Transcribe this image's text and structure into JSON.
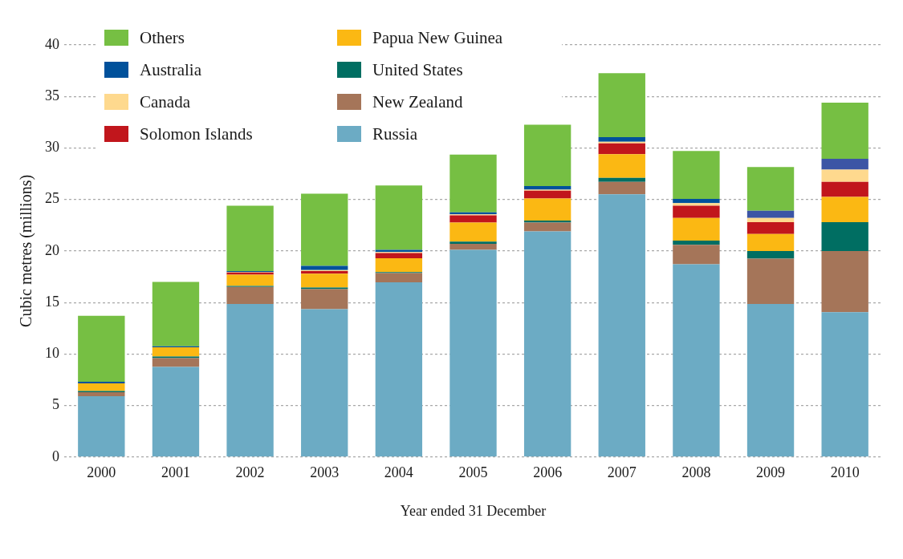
{
  "chart_data": {
    "type": "bar",
    "stacked": true,
    "xlabel": "Year ended 31 December",
    "ylabel": "Cubic metres (millions)",
    "categories": [
      "2000",
      "2001",
      "2002",
      "2003",
      "2004",
      "2005",
      "2006",
      "2007",
      "2008",
      "2009",
      "2010"
    ],
    "ylim": [
      0,
      40
    ],
    "yticks": [
      0,
      5,
      10,
      15,
      20,
      25,
      30,
      35,
      40
    ],
    "grid": "y",
    "legend": "top left",
    "series": [
      {
        "name": "Russia",
        "color": "#6cabc4",
        "values": [
          5.9,
          8.75,
          14.85,
          14.35,
          16.95,
          20.1,
          21.9,
          25.5,
          18.7,
          14.85,
          14.05
        ]
      },
      {
        "name": "New Zealand",
        "color": "#a57559",
        "values": [
          0.4,
          0.85,
          1.65,
          1.95,
          0.9,
          0.6,
          0.85,
          1.2,
          1.9,
          4.4,
          5.95
        ]
      },
      {
        "name": "United States",
        "color": "#006e62",
        "values": [
          0.1,
          0.15,
          0.1,
          0.15,
          0.1,
          0.2,
          0.2,
          0.4,
          0.4,
          0.75,
          2.8
        ]
      },
      {
        "name": "Papua New Guinea",
        "color": "#fbb813",
        "values": [
          0.75,
          0.9,
          1.1,
          1.35,
          1.35,
          1.85,
          2.15,
          2.3,
          2.2,
          1.65,
          2.45
        ]
      },
      {
        "name": "Solomon Islands",
        "color": "#c1161c",
        "values": [
          0,
          0,
          0.2,
          0.25,
          0.5,
          0.7,
          0.75,
          1.05,
          1.2,
          1.15,
          1.45
        ]
      },
      {
        "name": "Canada",
        "color": "#fed98e",
        "values": [
          0,
          0,
          0.05,
          0.1,
          0.1,
          0.1,
          0.1,
          0.15,
          0.25,
          0.4,
          1.2
        ]
      },
      {
        "name": "Australia",
        "color": "#00519b",
        "colors": [
          "#00519b",
          "#00519b",
          "#00519b",
          "#00519b",
          "#00519b",
          "#00519b",
          "#00519b",
          "#00519b",
          "#00519b",
          "#3c55a5",
          "#3c55a5"
        ],
        "values": [
          0.15,
          0.1,
          0.1,
          0.4,
          0.2,
          0.2,
          0.35,
          0.45,
          0.4,
          0.7,
          1.05
        ]
      },
      {
        "name": "Others",
        "color": "#76bf43",
        "values": [
          6.4,
          6.25,
          6.35,
          7.0,
          6.25,
          5.6,
          5.95,
          6.2,
          4.65,
          4.25,
          5.45
        ]
      }
    ]
  }
}
